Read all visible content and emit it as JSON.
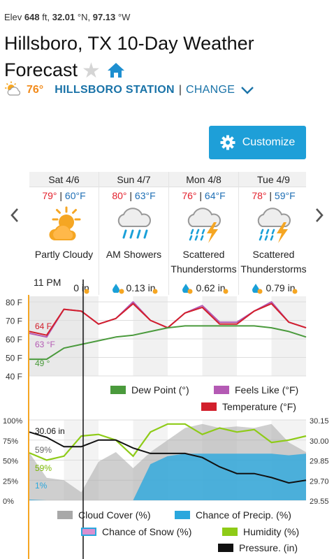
{
  "header": {
    "elev_label": "Elev",
    "elev_value": "648",
    "elev_unit": "ft,",
    "lat": "32.01",
    "lat_unit": "°N,",
    "lon": "97.13",
    "lon_unit": "°W",
    "title": "Hillsboro, TX 10-Day Weather Forecast",
    "current_temp": "76°",
    "station_name": "HILLSBORO STATION",
    "divider": "|",
    "change_label": "CHANGE"
  },
  "toolbar": {
    "customize_label": "Customize"
  },
  "colors": {
    "accent": "#1e9fd8",
    "link": "#1a73a8",
    "high": "#e3212d",
    "low": "#1f6fb5",
    "dew_point": "#4a9a3c",
    "feels_like": "#b45ab4",
    "temperature": "#d21f2c",
    "cloud_cover": "#a8a8a8",
    "precip": "#2aa7dd",
    "humidity": "#8ecb17",
    "pressure": "#111111",
    "now_line": "#f5a623"
  },
  "forecast": [
    {
      "date": "Sat 4/6",
      "high": "79°",
      "sep": "|",
      "low": "60°F",
      "icon": "partly-cloudy-icon",
      "desc": "Partly Cloudy",
      "precip": "0 in"
    },
    {
      "date": "Sun 4/7",
      "high": "80°",
      "sep": "|",
      "low": "63°F",
      "icon": "rain-icon",
      "desc": "AM Showers",
      "precip": "0.13 in"
    },
    {
      "date": "Mon 4/8",
      "high": "76°",
      "sep": "|",
      "low": "64°F",
      "icon": "thunderstorm-icon",
      "desc": "Scattered Thunderstorms",
      "precip": "0.62 in"
    },
    {
      "date": "Tue 4/9",
      "high": "78°",
      "sep": "|",
      "low": "59°F",
      "icon": "thunderstorm-icon",
      "desc": "Scattered Thunderstorms",
      "precip": "0.79 in"
    }
  ],
  "now_label": "11 PM",
  "chart_data": [
    {
      "type": "line",
      "y_ticks": [
        "80 F",
        "70 F",
        "60 F",
        "50 F",
        "40 F"
      ],
      "ylim": [
        40,
        83
      ],
      "x": [
        0,
        6,
        12,
        18,
        24,
        30,
        36,
        42,
        48,
        54,
        60,
        66,
        72,
        78,
        84,
        90,
        96
      ],
      "series": [
        {
          "name": "Temperature (°F)",
          "values": [
            64,
            62,
            76,
            75,
            68,
            71,
            79,
            70,
            66,
            74,
            77,
            68,
            68,
            75,
            79,
            69,
            66
          ]
        },
        {
          "name": "Feels Like (°F)",
          "values": [
            63,
            61,
            76,
            75,
            68,
            71,
            80,
            70,
            66,
            74,
            78,
            69,
            69,
            75,
            80,
            69,
            66
          ]
        },
        {
          "name": "Dew Point (°)",
          "values": [
            49,
            49,
            55,
            57,
            59,
            61,
            62,
            64,
            66,
            67,
            67,
            67,
            67,
            67,
            66,
            64,
            61
          ]
        }
      ],
      "readouts": [
        "64 F",
        "63 °F",
        "49 °"
      ],
      "grid": true
    },
    {
      "type": "area",
      "y_ticks_left": [
        "100%",
        "75%",
        "50%",
        "25%",
        "0%"
      ],
      "y_ticks_right": [
        "30.15",
        "30.00",
        "29.85",
        "29.70",
        "29.55"
      ],
      "ylim_left": [
        0,
        100
      ],
      "ylim_right": [
        29.55,
        30.15
      ],
      "x": [
        0,
        6,
        12,
        18,
        24,
        30,
        36,
        42,
        48,
        54,
        60,
        66,
        72,
        78,
        84,
        90,
        96
      ],
      "series": [
        {
          "name": "Cloud Cover (%)",
          "values": [
            59,
            28,
            25,
            10,
            48,
            60,
            40,
            60,
            75,
            90,
            95,
            90,
            92,
            90,
            95,
            72,
            60
          ]
        },
        {
          "name": "Chance of Precip. (%)",
          "values": [
            1,
            0,
            0,
            0,
            0,
            0,
            0,
            45,
            55,
            58,
            58,
            58,
            58,
            58,
            58,
            56,
            58
          ]
        },
        {
          "name": "Chance of Snow (%)",
          "values": [
            0,
            0,
            0,
            0,
            0,
            0,
            0,
            0,
            0,
            0,
            0,
            0,
            0,
            0,
            0,
            0,
            0
          ]
        },
        {
          "name": "Humidity (%)",
          "values": [
            59,
            50,
            55,
            80,
            82,
            75,
            55,
            85,
            95,
            95,
            82,
            90,
            85,
            88,
            72,
            75,
            80
          ]
        },
        {
          "name": "Pressure. (in)",
          "values": [
            30.06,
            30.02,
            29.95,
            29.95,
            30.0,
            30.0,
            29.94,
            29.9,
            29.9,
            29.9,
            29.87,
            29.8,
            29.75,
            29.75,
            29.72,
            29.68,
            29.7
          ]
        }
      ],
      "readouts": [
        "30.06 in",
        "59%",
        "59%",
        "1%"
      ],
      "grid": true
    }
  ],
  "legend1": {
    "dew": "Dew Point (°)",
    "feels": "Feels Like (°F)",
    "temp": "Temperature (°F)"
  },
  "legend2": {
    "cloud": "Cloud Cover (%)",
    "precip": "Chance of Precip. (%)",
    "snow": "Chance of Snow (%)",
    "humidity": "Humidity (%)",
    "pressure": "Pressure. (in)"
  }
}
